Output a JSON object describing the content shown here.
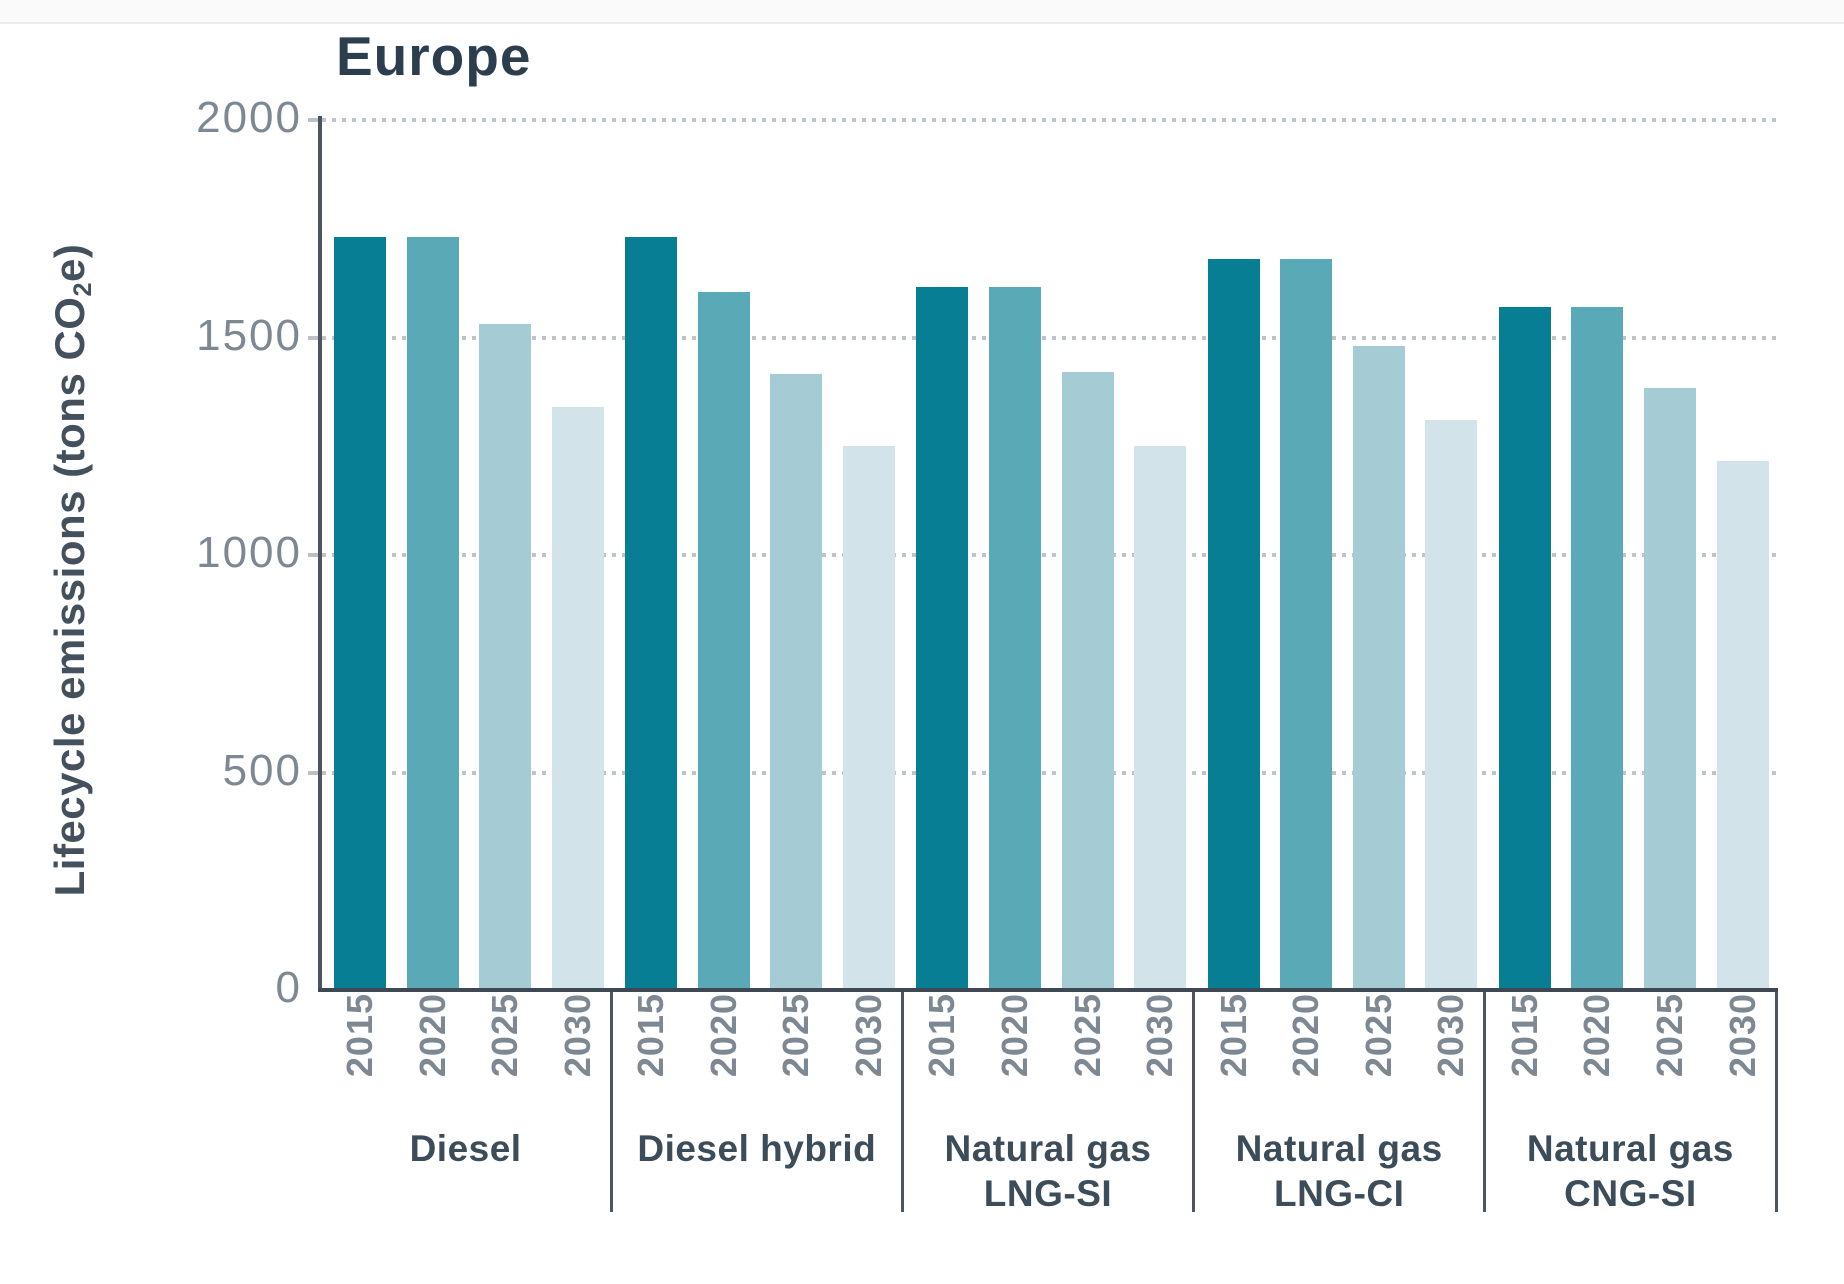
{
  "title": "Europe",
  "y_axis": {
    "label_pre": "Lifecycle emissions (tons CO",
    "label_sub": "2",
    "label_post": "e)"
  },
  "colors": {
    "bar_2015": "#087e95",
    "bar_2020": "#5aa9b6",
    "bar_2025": "#a5cbd5",
    "bar_2030": "#d2e3e9",
    "axis": "#4b555f",
    "baseline": "#3e4953",
    "gridline": "#bfc4c9",
    "tick_text": "#7d8893",
    "title_text": "#2c3d4e",
    "group_text": "#3d4c59"
  },
  "chart_data": {
    "type": "bar",
    "title": "Europe",
    "ylabel": "Lifecycle emissions (tons CO2e)",
    "xlabel": "",
    "ylim": [
      0,
      2000
    ],
    "yticks": [
      2000,
      1500,
      1000,
      500,
      0
    ],
    "grid": "horizontal dotted",
    "legend": "none",
    "years": [
      "2015",
      "2020",
      "2025",
      "2030"
    ],
    "year_colors": {
      "2015": "#087e95",
      "2020": "#5aa9b6",
      "2025": "#a5cbd5",
      "2030": "#d2e3e9"
    },
    "groups": [
      {
        "label_lines": [
          "Diesel"
        ],
        "values": [
          1730,
          1730,
          1530,
          1340
        ]
      },
      {
        "label_lines": [
          "Diesel hybrid"
        ],
        "values": [
          1730,
          1605,
          1415,
          1250
        ]
      },
      {
        "label_lines": [
          "Natural gas",
          "LNG-SI"
        ],
        "values": [
          1615,
          1615,
          1420,
          1250
        ]
      },
      {
        "label_lines": [
          "Natural gas",
          "LNG-CI"
        ],
        "values": [
          1680,
          1680,
          1480,
          1310
        ]
      },
      {
        "label_lines": [
          "Natural gas",
          "CNG-SI"
        ],
        "values": [
          1570,
          1570,
          1385,
          1215
        ]
      }
    ]
  }
}
